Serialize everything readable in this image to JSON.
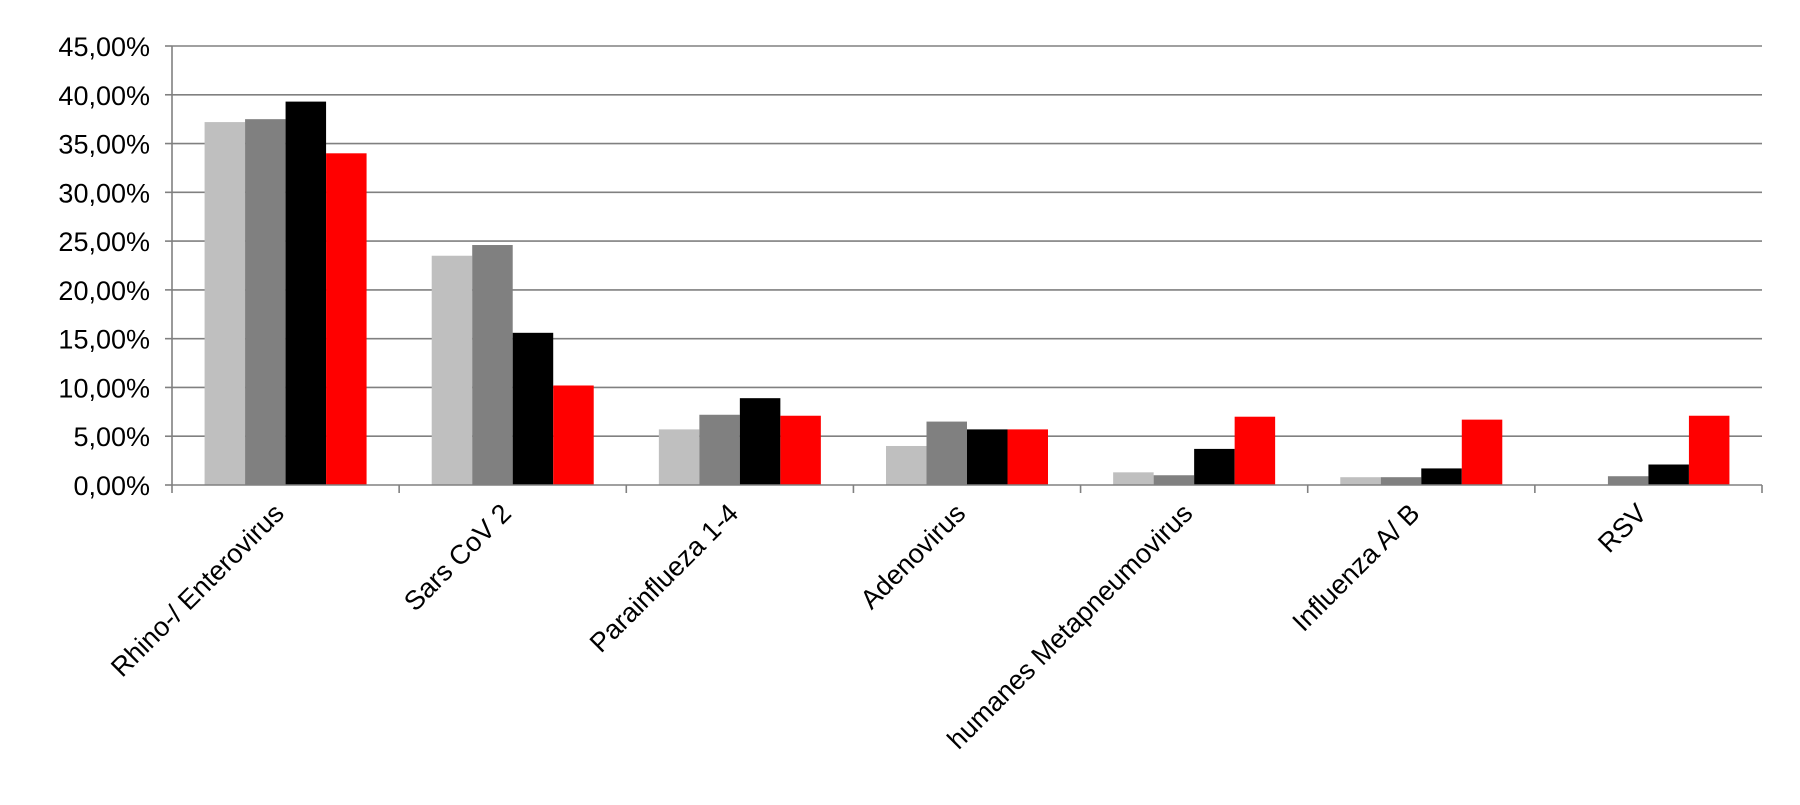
{
  "chart_data": {
    "type": "bar",
    "title": "",
    "xlabel": "",
    "ylabel": "",
    "categories": [
      "Rhino-/ Enterovirus",
      "Sars CoV 2",
      "Parainflueza 1-4",
      "Adenovirus",
      "humanes Metapneumovirus",
      "Influenza A/ B",
      "RSV"
    ],
    "series": [
      {
        "color": "#bfbfbf",
        "values": [
          37.2,
          23.5,
          5.7,
          4.0,
          1.3,
          0.8,
          0.0
        ]
      },
      {
        "color": "#808080",
        "values": [
          37.5,
          24.6,
          7.2,
          6.5,
          1.0,
          0.8,
          0.9
        ]
      },
      {
        "color": "#000000",
        "values": [
          39.3,
          15.6,
          8.9,
          5.7,
          3.7,
          1.7,
          2.1
        ]
      },
      {
        "color": "#ff0000",
        "values": [
          34.0,
          10.2,
          7.1,
          5.7,
          7.0,
          6.7,
          7.1
        ]
      }
    ],
    "ylim": [
      0,
      45
    ],
    "y_ticks": [
      {
        "value": 0,
        "label": "0,00%"
      },
      {
        "value": 5,
        "label": "5,00%"
      },
      {
        "value": 10,
        "label": "10,00%"
      },
      {
        "value": 15,
        "label": "15,00%"
      },
      {
        "value": 20,
        "label": "20,00%"
      },
      {
        "value": 25,
        "label": "25,00%"
      },
      {
        "value": 30,
        "label": "30,00%"
      },
      {
        "value": 35,
        "label": "35,00%"
      },
      {
        "value": 40,
        "label": "40,00%"
      },
      {
        "value": 45,
        "label": "45,00%"
      }
    ],
    "grid": true,
    "legend": "none",
    "colors": {
      "gridline": "#808080",
      "axis": "#808080",
      "text": "#000000"
    }
  }
}
